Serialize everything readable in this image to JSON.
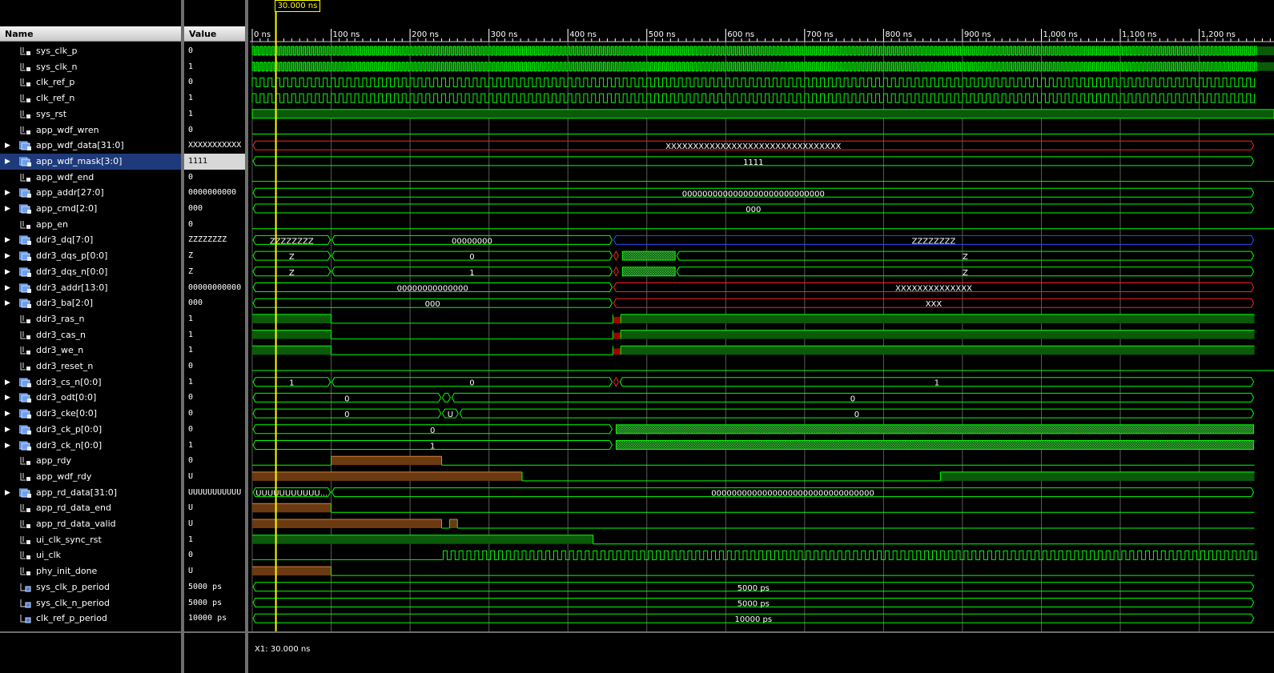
{
  "headers": {
    "name": "Name",
    "value": "Value"
  },
  "cursor": {
    "label": "30.000 ns",
    "readout": "X1: 30.000 ns",
    "time_ns": 30
  },
  "timeline": {
    "ticks": [
      "0 ns",
      "100 ns",
      "200 ns",
      "300 ns",
      "400 ns",
      "500 ns",
      "600 ns",
      "700 ns",
      "800 ns",
      "900 ns",
      "1,000 ns",
      "1,100 ns",
      "1,200 ns"
    ],
    "tick_ns": [
      0,
      100,
      200,
      300,
      400,
      500,
      600,
      700,
      800,
      900,
      1000,
      1100,
      1200
    ],
    "visible_range_ns": [
      0,
      1270
    ]
  },
  "colors": {
    "wave": "#00ff00",
    "fill": "#0a5a0a",
    "undefined": "#ff2020",
    "z": "#2050ff",
    "u_fill": "#6b3a10",
    "cursor": "#ffff00"
  },
  "signals": [
    {
      "name": "sys_clk_p",
      "value": "0",
      "icon": "signal-icon",
      "type": "clk",
      "period": 5
    },
    {
      "name": "sys_clk_n",
      "value": "1",
      "icon": "signal-icon",
      "type": "clk",
      "period": 5
    },
    {
      "name": "clk_ref_p",
      "value": "0",
      "icon": "signal-icon",
      "type": "clk",
      "period": 10
    },
    {
      "name": "clk_ref_n",
      "value": "1",
      "icon": "signal-icon",
      "type": "clk",
      "period": 10
    },
    {
      "name": "sys_rst",
      "value": "1",
      "icon": "signal-icon",
      "type": "high"
    },
    {
      "name": "app_wdf_wren",
      "value": "0",
      "icon": "signal-icon",
      "type": "low"
    },
    {
      "name": "app_wdf_data[31:0]",
      "value": "XXXXXXXXXXX",
      "icon": "bus-icon",
      "bus": true,
      "type": "bus",
      "segments": [
        {
          "from": 0,
          "to": 1270,
          "label": "XXXXXXXXXXXXXXXXXXXXXXXXXXXXXXXX",
          "kind": "x"
        }
      ]
    },
    {
      "name": "app_wdf_mask[3:0]",
      "value": "1111",
      "icon": "bus-icon",
      "bus": true,
      "selected": true,
      "type": "bus",
      "segments": [
        {
          "from": 0,
          "to": 1270,
          "label": "1111",
          "kind": "v"
        }
      ]
    },
    {
      "name": "app_wdf_end",
      "value": "0",
      "icon": "signal-icon",
      "type": "low"
    },
    {
      "name": "app_addr[27:0]",
      "value": "0000000000",
      "icon": "bus-icon",
      "bus": true,
      "type": "bus",
      "segments": [
        {
          "from": 0,
          "to": 1270,
          "label": "0000000000000000000000000000",
          "kind": "v"
        }
      ]
    },
    {
      "name": "app_cmd[2:0]",
      "value": "000",
      "icon": "bus-icon",
      "bus": true,
      "type": "bus",
      "segments": [
        {
          "from": 0,
          "to": 1270,
          "label": "000",
          "kind": "v"
        }
      ]
    },
    {
      "name": "app_en",
      "value": "0",
      "icon": "signal-icon",
      "type": "low"
    },
    {
      "name": "ddr3_dq[7:0]",
      "value": "ZZZZZZZZ",
      "icon": "bus-icon",
      "bus": true,
      "type": "bus",
      "segments": [
        {
          "from": 0,
          "to": 100,
          "label": "ZZZZZZZZ",
          "kind": "v"
        },
        {
          "from": 100,
          "to": 457,
          "label": "00000000",
          "kind": "v"
        },
        {
          "from": 457,
          "to": 1270,
          "label": "ZZZZZZZZ",
          "kind": "z"
        }
      ]
    },
    {
      "name": "ddr3_dqs_p[0:0]",
      "value": "Z",
      "icon": "bus-icon",
      "bus": true,
      "type": "bus",
      "segments": [
        {
          "from": 0,
          "to": 100,
          "label": "Z",
          "kind": "v"
        },
        {
          "from": 100,
          "to": 457,
          "label": "0",
          "kind": "v"
        },
        {
          "from": 457,
          "to": 465,
          "label": "",
          "kind": "x"
        },
        {
          "from": 465,
          "to": 537,
          "label": "",
          "kind": "hatch"
        },
        {
          "from": 537,
          "to": 1270,
          "label": "Z",
          "kind": "v"
        }
      ]
    },
    {
      "name": "ddr3_dqs_n[0:0]",
      "value": "Z",
      "icon": "bus-icon",
      "bus": true,
      "type": "bus",
      "segments": [
        {
          "from": 0,
          "to": 100,
          "label": "Z",
          "kind": "v"
        },
        {
          "from": 100,
          "to": 457,
          "label": "1",
          "kind": "v"
        },
        {
          "from": 457,
          "to": 465,
          "label": "",
          "kind": "x"
        },
        {
          "from": 465,
          "to": 537,
          "label": "",
          "kind": "hatch"
        },
        {
          "from": 537,
          "to": 1270,
          "label": "Z",
          "kind": "v"
        }
      ]
    },
    {
      "name": "ddr3_addr[13:0]",
      "value": "00000000000",
      "icon": "bus-icon",
      "bus": true,
      "type": "bus",
      "segments": [
        {
          "from": 0,
          "to": 457,
          "label": "00000000000000",
          "kind": "v"
        },
        {
          "from": 457,
          "to": 1270,
          "label": "XXXXXXXXXXXXXX",
          "kind": "x"
        }
      ]
    },
    {
      "name": "ddr3_ba[2:0]",
      "value": "000",
      "icon": "bus-icon",
      "bus": true,
      "type": "bus",
      "segments": [
        {
          "from": 0,
          "to": 457,
          "label": "000",
          "kind": "v"
        },
        {
          "from": 457,
          "to": 1270,
          "label": "XXX",
          "kind": "x"
        }
      ]
    },
    {
      "name": "ddr3_ras_n",
      "value": "1",
      "icon": "signal-icon",
      "type": "pulse",
      "pattern": [
        [
          0,
          100,
          "h"
        ],
        [
          100,
          457,
          "l"
        ],
        [
          457,
          467,
          "x"
        ],
        [
          467,
          1270,
          "h"
        ]
      ]
    },
    {
      "name": "ddr3_cas_n",
      "value": "1",
      "icon": "signal-icon",
      "type": "pulse",
      "pattern": [
        [
          0,
          100,
          "h"
        ],
        [
          100,
          457,
          "l"
        ],
        [
          457,
          467,
          "x"
        ],
        [
          467,
          1270,
          "h"
        ]
      ]
    },
    {
      "name": "ddr3_we_n",
      "value": "1",
      "icon": "signal-icon",
      "type": "pulse",
      "pattern": [
        [
          0,
          100,
          "h"
        ],
        [
          100,
          457,
          "l"
        ],
        [
          457,
          467,
          "x"
        ],
        [
          467,
          1270,
          "h"
        ]
      ]
    },
    {
      "name": "ddr3_reset_n",
      "value": "0",
      "icon": "signal-icon",
      "type": "low"
    },
    {
      "name": "ddr3_cs_n[0:0]",
      "value": "1",
      "icon": "bus-icon",
      "bus": true,
      "type": "bus",
      "segments": [
        {
          "from": 0,
          "to": 100,
          "label": "1",
          "kind": "v"
        },
        {
          "from": 100,
          "to": 457,
          "label": "0",
          "kind": "v"
        },
        {
          "from": 457,
          "to": 465,
          "label": "",
          "kind": "x"
        },
        {
          "from": 465,
          "to": 1270,
          "label": "1",
          "kind": "v"
        }
      ]
    },
    {
      "name": "ddr3_odt[0:0]",
      "value": "0",
      "icon": "bus-icon",
      "bus": true,
      "type": "bus",
      "segments": [
        {
          "from": 0,
          "to": 240,
          "label": "0",
          "kind": "v"
        },
        {
          "from": 240,
          "to": 252,
          "label": "",
          "kind": "v"
        },
        {
          "from": 252,
          "to": 1270,
          "label": "0",
          "kind": "v"
        }
      ]
    },
    {
      "name": "ddr3_cke[0:0]",
      "value": "0",
      "icon": "bus-icon",
      "bus": true,
      "type": "bus",
      "segments": [
        {
          "from": 0,
          "to": 240,
          "label": "0",
          "kind": "v"
        },
        {
          "from": 240,
          "to": 262,
          "label": "U",
          "kind": "v"
        },
        {
          "from": 262,
          "to": 1270,
          "label": "0",
          "kind": "v"
        }
      ]
    },
    {
      "name": "ddr3_ck_p[0:0]",
      "value": "0",
      "icon": "bus-icon",
      "bus": true,
      "type": "bus",
      "segments": [
        {
          "from": 0,
          "to": 457,
          "label": "0",
          "kind": "v"
        },
        {
          "from": 457,
          "to": 1270,
          "label": "",
          "kind": "hatch"
        }
      ]
    },
    {
      "name": "ddr3_ck_n[0:0]",
      "value": "1",
      "icon": "bus-icon",
      "bus": true,
      "type": "bus",
      "segments": [
        {
          "from": 0,
          "to": 457,
          "label": "1",
          "kind": "v"
        },
        {
          "from": 457,
          "to": 1270,
          "label": "",
          "kind": "hatch"
        }
      ]
    },
    {
      "name": "app_rdy",
      "value": "0",
      "icon": "signal-icon",
      "type": "pulse",
      "pattern": [
        [
          0,
          100,
          "l"
        ],
        [
          100,
          240,
          "u"
        ],
        [
          240,
          1270,
          "l"
        ]
      ]
    },
    {
      "name": "app_wdf_rdy",
      "value": "U",
      "icon": "signal-icon",
      "type": "pulse",
      "pattern": [
        [
          0,
          342,
          "u"
        ],
        [
          342,
          872,
          "l"
        ],
        [
          872,
          1270,
          "h"
        ]
      ]
    },
    {
      "name": "app_rd_data[31:0]",
      "value": "UUUUUUUUUUU",
      "icon": "bus-icon",
      "bus": true,
      "type": "bus",
      "segments": [
        {
          "from": 0,
          "to": 100,
          "label": "UUUUUUUUUUU...",
          "kind": "v"
        },
        {
          "from": 100,
          "to": 1270,
          "label": "00000000000000000000000000000000",
          "kind": "v"
        }
      ]
    },
    {
      "name": "app_rd_data_end",
      "value": "U",
      "icon": "signal-icon",
      "type": "pulse",
      "pattern": [
        [
          0,
          100,
          "u"
        ],
        [
          100,
          1270,
          "l"
        ]
      ]
    },
    {
      "name": "app_rd_data_valid",
      "value": "U",
      "icon": "signal-icon",
      "type": "pulse",
      "pattern": [
        [
          0,
          240,
          "u"
        ],
        [
          240,
          250,
          "l"
        ],
        [
          250,
          260,
          "u"
        ],
        [
          260,
          1270,
          "l"
        ]
      ]
    },
    {
      "name": "ui_clk_sync_rst",
      "value": "1",
      "icon": "signal-icon",
      "type": "pulse",
      "pattern": [
        [
          0,
          432,
          "h"
        ],
        [
          432,
          1270,
          "l"
        ]
      ]
    },
    {
      "name": "ui_clk",
      "value": "0",
      "icon": "signal-icon",
      "type": "clkfrom",
      "from": 242,
      "period": 10
    },
    {
      "name": "phy_init_done",
      "value": "U",
      "icon": "signal-icon",
      "type": "pulse",
      "pattern": [
        [
          0,
          100,
          "u"
        ],
        [
          100,
          1270,
          "l"
        ]
      ]
    },
    {
      "name": "sys_clk_p_period",
      "value": "5000 ps",
      "icon": "const-icon",
      "type": "bus",
      "segments": [
        {
          "from": 0,
          "to": 1270,
          "label": "5000 ps",
          "kind": "v"
        }
      ]
    },
    {
      "name": "sys_clk_n_period",
      "value": "5000 ps",
      "icon": "const-icon",
      "type": "bus",
      "segments": [
        {
          "from": 0,
          "to": 1270,
          "label": "5000 ps",
          "kind": "v"
        }
      ]
    },
    {
      "name": "clk_ref_p_period",
      "value": "10000 ps",
      "icon": "const-icon",
      "type": "bus",
      "segments": [
        {
          "from": 0,
          "to": 1270,
          "label": "10000 ps",
          "kind": "v"
        }
      ]
    }
  ]
}
